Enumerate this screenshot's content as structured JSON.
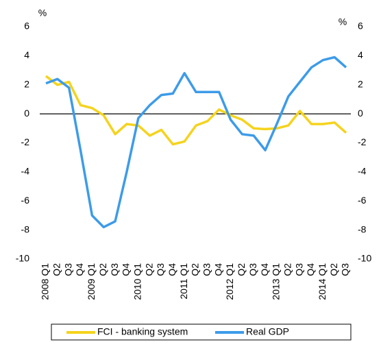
{
  "chart_data": {
    "type": "line",
    "y_label": "%",
    "y2_label": "%",
    "categories": [
      "2008 Q1",
      "Q2",
      "Q3",
      "Q4",
      "2009 Q1",
      "Q2",
      "Q3",
      "Q4",
      "2010 Q1",
      "Q2",
      "Q3",
      "Q4",
      "2011 Q1",
      "Q2",
      "Q3",
      "Q4",
      "2012 Q1",
      "Q2",
      "Q3",
      "Q4",
      "2013 Q1",
      "Q2",
      "Q3",
      "Q4",
      "2014 Q1",
      "Q2",
      "Q3"
    ],
    "series": [
      {
        "name": "FCI - banking system",
        "color": "#f5d31c",
        "values": [
          2.6,
          2.0,
          2.2,
          0.6,
          0.4,
          -0.1,
          -1.4,
          -0.7,
          -0.8,
          -1.5,
          -1.1,
          -2.1,
          -1.9,
          -0.8,
          -0.5,
          0.3,
          -0.1,
          -0.4,
          -1.0,
          -1.05,
          -1.0,
          -0.8,
          0.2,
          -0.7,
          -0.7,
          -0.6,
          -1.3
        ]
      },
      {
        "name": "Real GDP",
        "color": "#3d9be9",
        "values": [
          2.1,
          2.4,
          1.8,
          -2.5,
          -7.0,
          -7.8,
          -7.4,
          -4.0,
          -0.3,
          0.6,
          1.3,
          1.4,
          2.8,
          1.5,
          1.5,
          1.5,
          -0.4,
          -1.4,
          -1.5,
          -2.5,
          -0.7,
          1.2,
          2.2,
          3.2,
          3.7,
          3.9,
          3.2
        ]
      }
    ],
    "ylim": [
      -10,
      6
    ],
    "yticks": [
      -10,
      -8,
      -6,
      -4,
      -2,
      0,
      2,
      4,
      6
    ],
    "y2lim": [
      -10,
      6
    ],
    "y2ticks": [
      -10,
      -8,
      -6,
      -4,
      -2,
      0,
      2,
      4,
      6
    ],
    "grid": false,
    "legend": "bottom"
  }
}
